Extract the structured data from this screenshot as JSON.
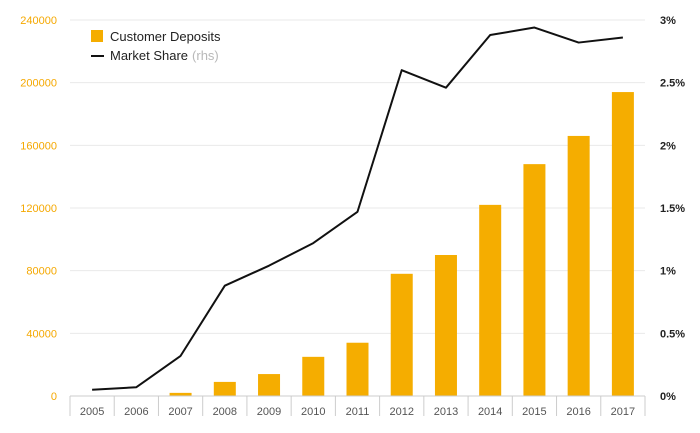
{
  "chart_data": {
    "type": "bar",
    "categories": [
      "2005",
      "2006",
      "2007",
      "2008",
      "2009",
      "2010",
      "2011",
      "2012",
      "2013",
      "2014",
      "2015",
      "2016",
      "2017"
    ],
    "series": [
      {
        "name": "Customer Deposits",
        "type": "bar",
        "axis": "left",
        "color": "#f5ad00",
        "values": [
          0,
          0,
          2000,
          9000,
          14000,
          25000,
          34000,
          78000,
          90000,
          122000,
          148000,
          166000,
          194000
        ]
      },
      {
        "name": "Market Share",
        "name_suffix": "(rhs)",
        "type": "line",
        "axis": "right",
        "color": "#111111",
        "values": [
          0.05,
          0.07,
          0.32,
          0.88,
          1.04,
          1.22,
          1.47,
          2.6,
          2.46,
          2.88,
          2.94,
          2.82,
          2.86
        ]
      }
    ],
    "y_left": {
      "ylim": [
        0,
        240000
      ],
      "ticks": [
        0,
        40000,
        80000,
        120000,
        160000,
        200000,
        240000
      ],
      "tick_labels": [
        "0",
        "40000",
        "80000",
        "120000",
        "160000",
        "200000",
        "240000"
      ]
    },
    "y_right": {
      "ylim": [
        0,
        3
      ],
      "ticks": [
        0,
        0.5,
        1,
        1.5,
        2,
        2.5,
        3
      ],
      "tick_labels": [
        "0%",
        "0.5%",
        "1%",
        "1.5%",
        "2%",
        "2.5%",
        "3%"
      ]
    },
    "legend_position": "top-left",
    "grid": true,
    "xlabel": "",
    "ylabel": ""
  }
}
